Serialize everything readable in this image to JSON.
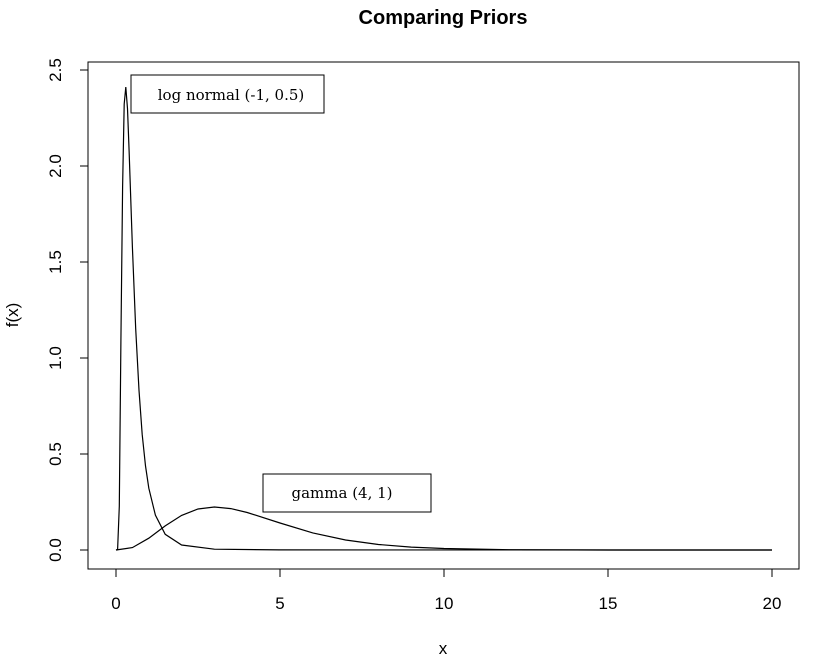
{
  "chart_data": {
    "type": "line",
    "title": "Comparing Priors",
    "xlabel": "x",
    "ylabel": "f(x)",
    "xlim": [
      0,
      20
    ],
    "ylim": [
      0,
      2.5
    ],
    "x_ticks": [
      "0",
      "5",
      "10",
      "15",
      "20"
    ],
    "y_ticks": [
      "0.0",
      "0.5",
      "1.0",
      "1.5",
      "2.0",
      "2.5"
    ],
    "grid": false,
    "series": [
      {
        "name": "log normal (-1, 0.5)",
        "x": [
          0,
          0.05,
          0.1,
          0.15,
          0.2,
          0.25,
          0.3,
          0.35,
          0.4,
          0.5,
          0.6,
          0.7,
          0.8,
          0.9,
          1.0,
          1.2,
          1.5,
          2.0,
          3.0,
          5.0,
          20
        ],
        "y": [
          0,
          0.0021,
          0.2275,
          1.0853,
          1.8921,
          2.3229,
          2.4113,
          2.2985,
          2.0798,
          1.5776,
          1.1521,
          0.8316,
          0.6011,
          0.4379,
          0.3225,
          0.181,
          0.0817,
          0.0263,
          0.0041,
          0.0003,
          0
        ]
      },
      {
        "name": "gamma (4, 1)",
        "x": [
          0,
          0.5,
          1,
          1.5,
          2,
          2.5,
          3,
          3.5,
          4,
          5,
          6,
          7,
          8,
          9,
          10,
          12,
          15,
          20
        ],
        "y": [
          0,
          0.0126,
          0.0613,
          0.1255,
          0.1804,
          0.2138,
          0.224,
          0.2158,
          0.1954,
          0.1404,
          0.0892,
          0.0521,
          0.0286,
          0.015,
          0.0076,
          0.0018,
          0.0002,
          0
        ]
      }
    ],
    "annotations": [
      {
        "text": "log normal (-1, 0.5)"
      },
      {
        "text": "gamma (4, 1)"
      }
    ]
  }
}
